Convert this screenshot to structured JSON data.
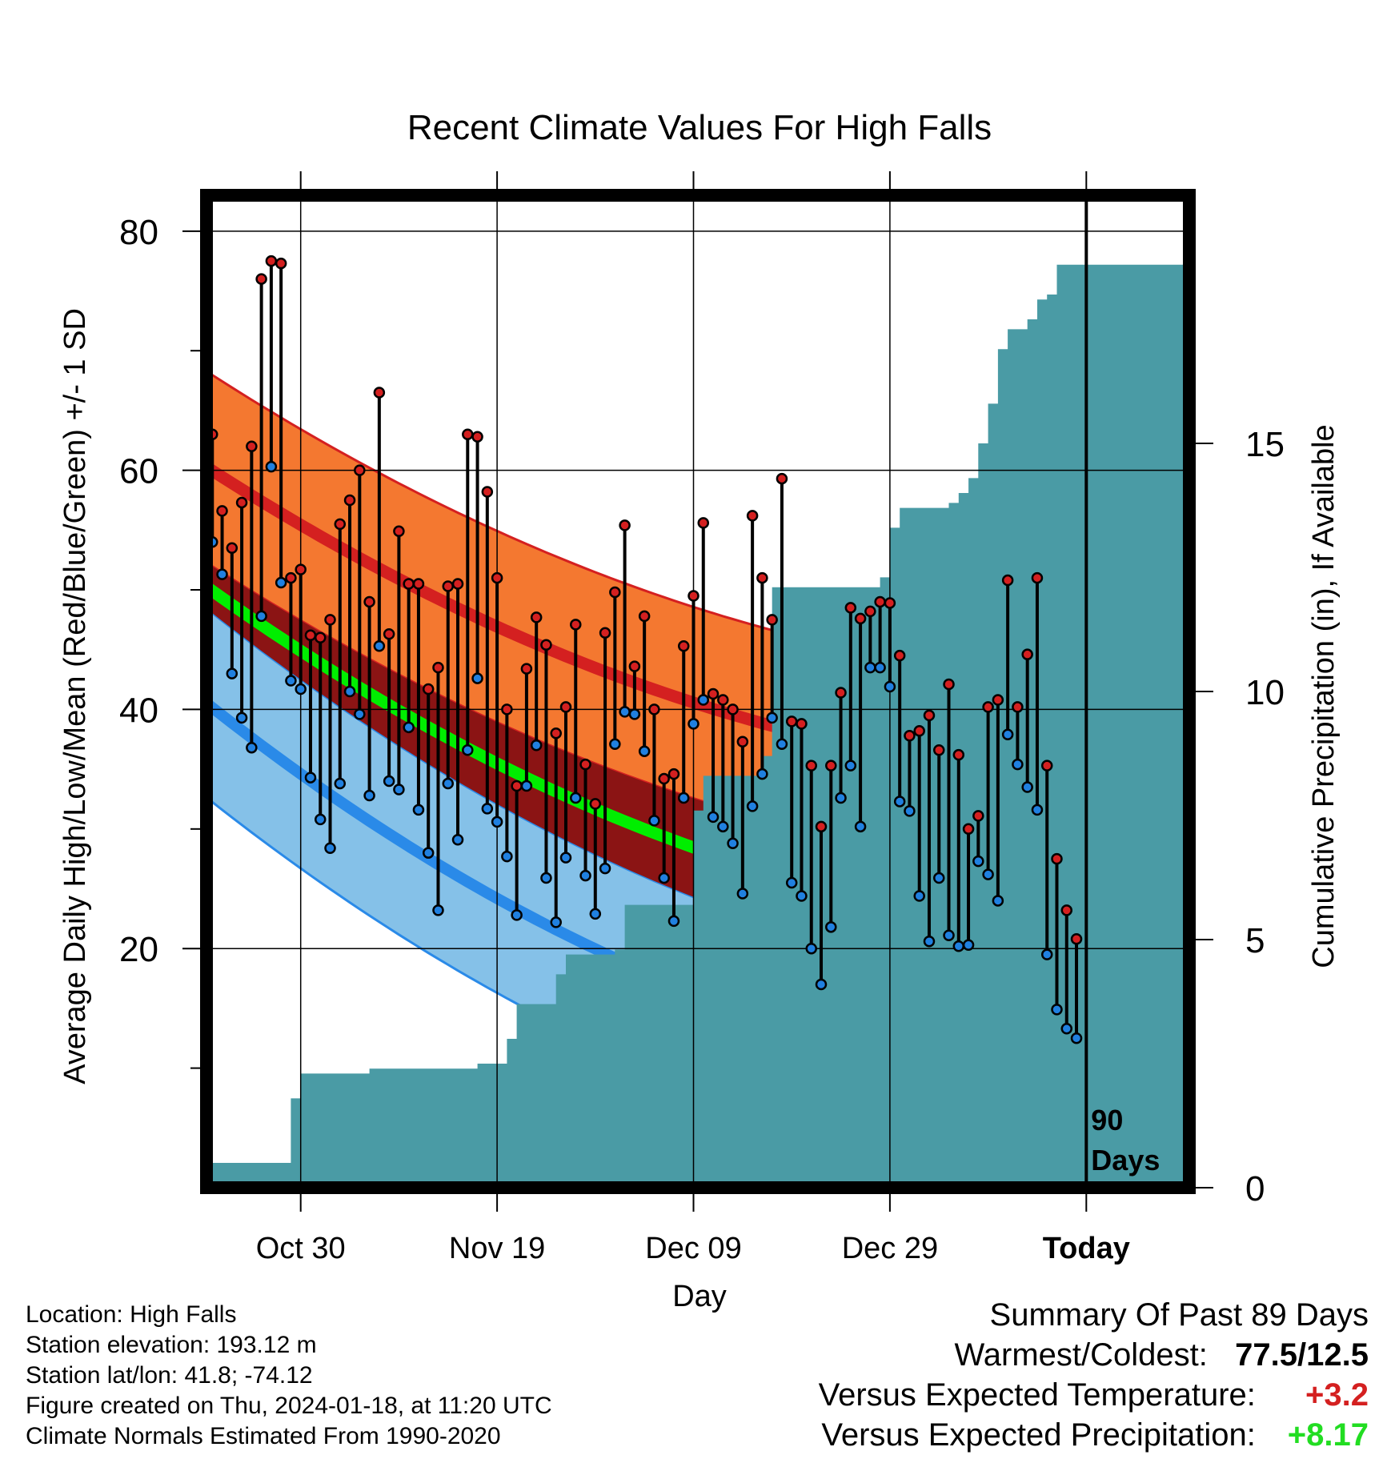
{
  "chart_data": {
    "type": "line",
    "title": "Recent Climate Values For High Falls",
    "xlabel": "Day",
    "ylabel": "Average Daily High/Low/Mean (Red/Blue/Green) +/- 1 SD",
    "ylabel_right": "Cumulative Precipitation (in), If Available",
    "ylim": [
      0,
      83
    ],
    "y_ticks": [
      20,
      40,
      60,
      80
    ],
    "precip_ylim": [
      0,
      20
    ],
    "precip_ticks": [
      0,
      5,
      10,
      15
    ],
    "x_range_days": [
      -90,
      9
    ],
    "x_ticks": [
      {
        "day": -80,
        "label": "Oct 30"
      },
      {
        "day": -60,
        "label": "Nov 19"
      },
      {
        "day": -40,
        "label": "Dec 09"
      },
      {
        "day": -20,
        "label": "Dec 29"
      },
      {
        "day": 0,
        "label": "Today"
      }
    ],
    "today_marker_label": [
      "90",
      "Days"
    ],
    "normal_high": {
      "mean_start": 60.5,
      "mean_end": 34.1,
      "sd": 8.0
    },
    "normal_low": {
      "mean_start": 40.8,
      "mean_end": 8.5,
      "sd": 7.9
    },
    "normal_mean_start": 50.5,
    "series": [
      {
        "name": "Daily High",
        "color": "#d42020",
        "values": [
          63,
          56.6,
          53.5,
          57.3,
          62,
          76,
          77.5,
          77.3,
          51,
          51.7,
          46.2,
          46,
          47.5,
          55.5,
          57.5,
          60,
          49,
          66.5,
          46.3,
          54.9,
          50.5,
          50.5,
          41.7,
          43.5,
          50.3,
          50.5,
          63,
          62.8,
          58.2,
          51,
          40,
          33.6,
          43.4,
          47.7,
          45.4,
          38,
          40.2,
          47.1,
          35.4,
          32.1,
          46.4,
          49.8,
          55.4,
          43.6,
          47.8,
          40,
          34.2,
          34.6,
          45.3,
          49.5,
          55.6,
          41.3,
          40.8,
          40,
          37.3,
          56.2,
          51,
          47.5,
          59.3,
          39,
          38.8,
          35.3,
          30.2,
          35.3,
          41.4,
          48.5,
          47.6,
          48.2,
          49,
          48.9,
          44.5,
          37.8,
          38.2,
          39.5,
          36.6,
          42.1,
          36.2,
          30,
          31.1,
          40.2,
          40.8,
          50.8,
          40.2,
          44.6,
          51,
          35.3,
          27.5,
          23.2,
          20.8
        ]
      },
      {
        "name": "Daily Low",
        "color": "#2080e0",
        "values": [
          54,
          51.3,
          43,
          39.3,
          36.8,
          47.8,
          60.3,
          50.6,
          42.4,
          41.7,
          34.3,
          30.8,
          28.4,
          33.8,
          41.5,
          39.6,
          32.8,
          45.3,
          34,
          33.3,
          38.5,
          31.6,
          28,
          23.2,
          33.8,
          29.1,
          36.6,
          42.6,
          31.7,
          30.6,
          27.7,
          22.8,
          33.6,
          37,
          25.9,
          22.2,
          27.6,
          32.6,
          26.1,
          22.9,
          26.7,
          37.1,
          39.8,
          39.6,
          36.5,
          30.7,
          25.9,
          22.3,
          32.6,
          38.8,
          40.8,
          31,
          30.2,
          28.8,
          24.6,
          31.9,
          34.6,
          39.3,
          37.1,
          25.5,
          24.4,
          20,
          17,
          21.8,
          32.6,
          35.3,
          30.2,
          43.5,
          43.5,
          41.9,
          32.3,
          31.5,
          24.4,
          20.6,
          25.9,
          21.1,
          20.2,
          20.3,
          27.3,
          26.2,
          24,
          37.9,
          35.4,
          33.5,
          31.6,
          19.5,
          14.9,
          13.3,
          12.5
        ]
      },
      {
        "name": "Cumulative Precipitation (in)",
        "color": "#4a9ba5",
        "values": [
          0.3,
          0.5,
          0.5,
          0.5,
          0.5,
          0.5,
          0.5,
          0.5,
          0.5,
          1.8,
          2.3,
          2.3,
          2.3,
          2.3,
          2.3,
          2.3,
          2.3,
          2.4,
          2.4,
          2.4,
          2.4,
          2.4,
          2.4,
          2.4,
          2.4,
          2.4,
          2.4,
          2.4,
          2.5,
          2.5,
          2.5,
          3,
          3.7,
          3.7,
          3.7,
          3.7,
          4.3,
          4.7,
          4.7,
          4.7,
          4.7,
          4.7,
          4.8,
          5.7,
          5.7,
          5.7,
          5.7,
          5.7,
          5.7,
          5.7,
          7.6,
          8.3,
          8.3,
          8.3,
          8.3,
          8.3,
          8.3,
          8.7,
          12.1,
          12.1,
          12.1,
          12.1,
          12.1,
          12.1,
          12.1,
          12.1,
          12.1,
          12.1,
          12.1,
          12.3,
          13.3,
          13.7,
          13.7,
          13.7,
          13.7,
          13.7,
          13.8,
          14,
          14.3,
          15,
          15.8,
          16.9,
          17.3,
          17.3,
          17.5,
          17.9,
          18,
          18.6,
          18.6,
          18.6
        ]
      }
    ]
  },
  "info": {
    "location": "Location: High Falls",
    "elevation": "Station elevation: 193.12 m",
    "latlon": "Station lat/lon: 41.8; -74.12",
    "created": "Figure created on Thu, 2024-01-18, at 11:20 UTC",
    "normals": "Climate Normals Estimated From 1990-2020"
  },
  "summary": {
    "heading": "Summary Of Past 89 Days",
    "warm_cold_label": "Warmest/Coldest:",
    "warm_cold_value": "77.5/12.5",
    "temp_label": "Versus Expected Temperature:",
    "temp_value": "+3.2",
    "temp_color": "#d42020",
    "precip_label": "Versus Expected Precipitation:",
    "precip_value": "+8.17",
    "precip_color": "#22dd22"
  }
}
